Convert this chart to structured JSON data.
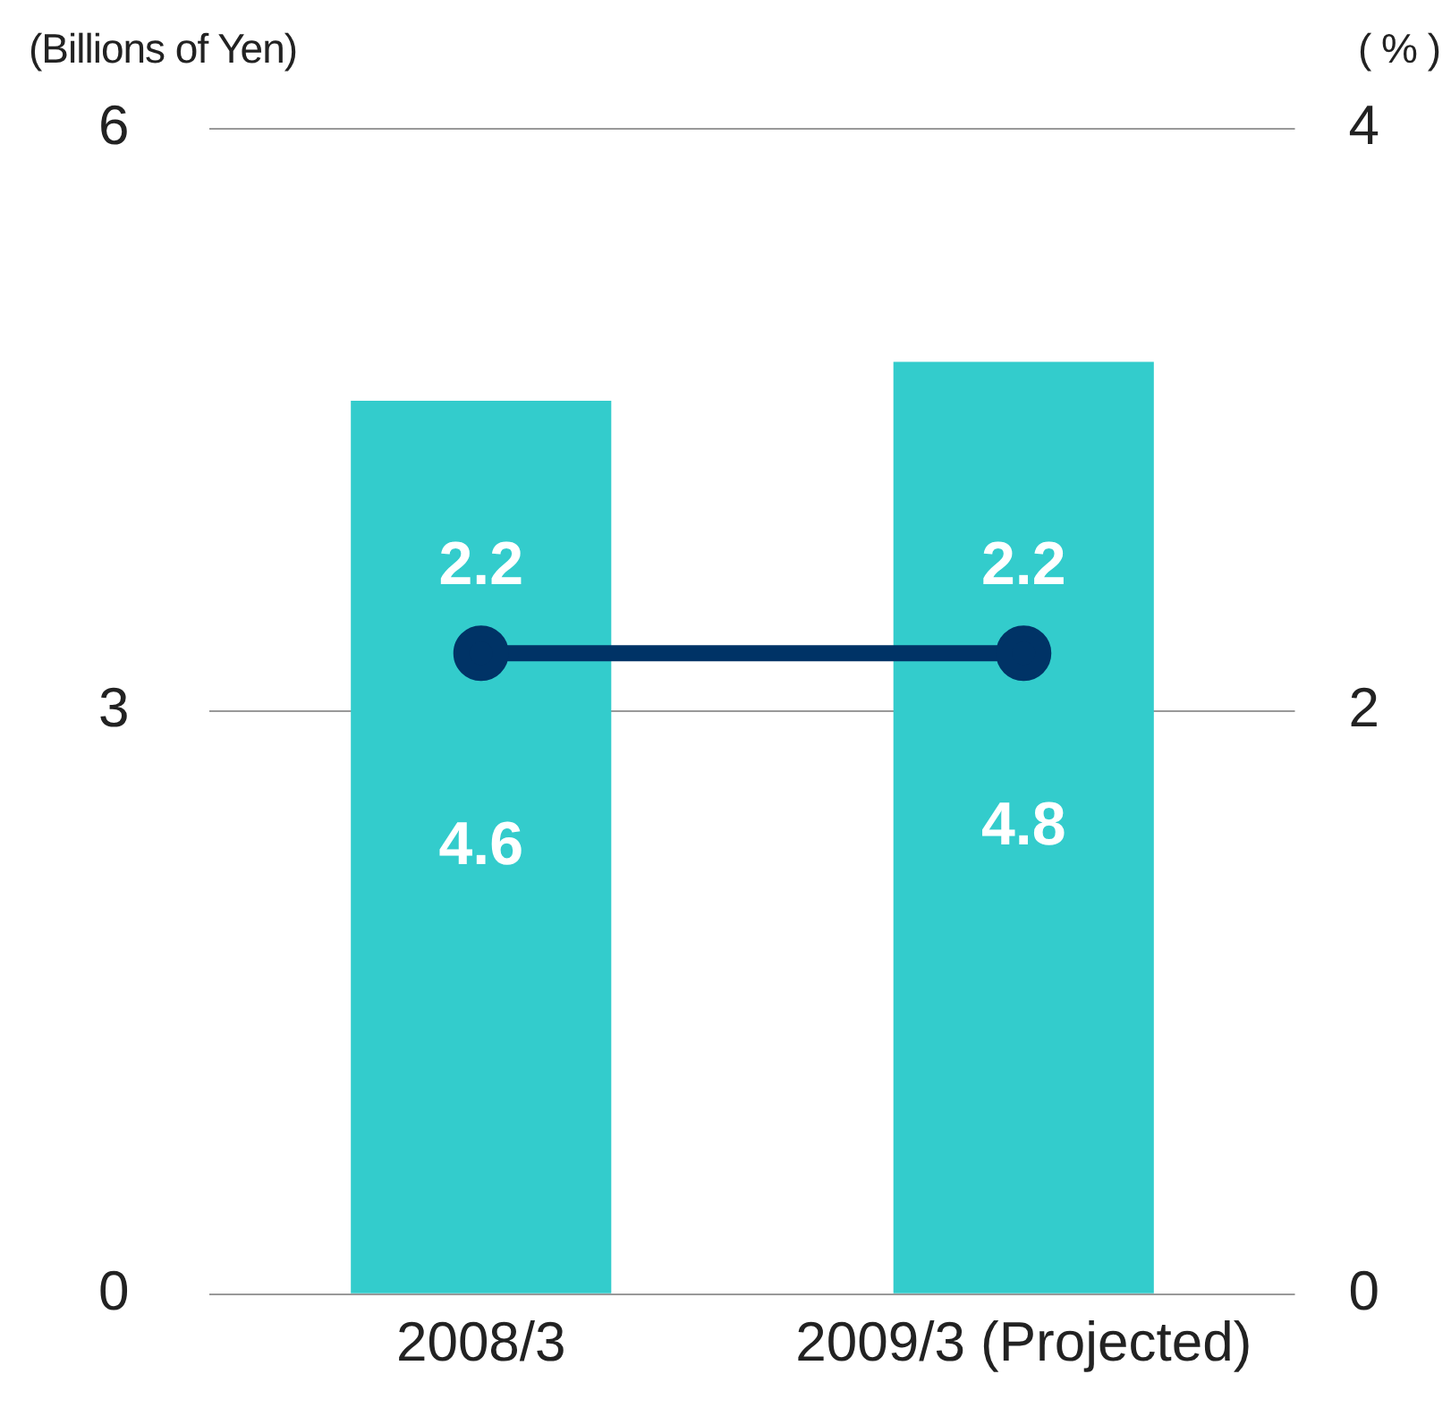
{
  "chart_data": {
    "type": "bar",
    "ylabel": "(Billions of Yen)",
    "y2label": "( % )",
    "categories": [
      "2008/3",
      "2009/3 (Projected)"
    ],
    "series": [
      {
        "color": "#33cccc",
        "values": [
          4.6,
          4.8
        ]
      },
      {
        "type": "line",
        "axis": "y2",
        "color": "#003366",
        "values": [
          2.2,
          2.2
        ],
        "marker": "circle"
      }
    ],
    "ylim": [
      0,
      6
    ],
    "yticks": [
      0,
      3,
      6
    ],
    "y2lim": [
      0,
      4
    ],
    "y2ticks": [
      0,
      2,
      4
    ],
    "grid": "y",
    "data_labels": true,
    "legend": false
  }
}
